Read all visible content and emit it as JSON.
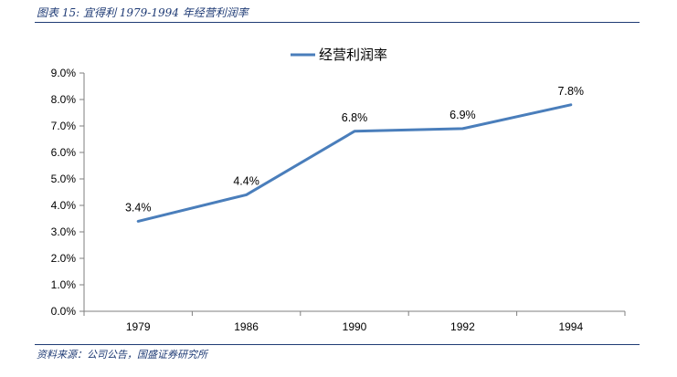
{
  "figure": {
    "title": "图表 15:  宜得利 1979-1994 年经营利润率",
    "source": "资料来源：公司公告，国盛证券研究所"
  },
  "colors": {
    "series": "#4a7ebb",
    "accent": "#1f3b75",
    "axis": "#7f7f7f"
  },
  "chart_data": {
    "type": "line",
    "categories": [
      "1979",
      "1986",
      "1990",
      "1992",
      "1994"
    ],
    "series": [
      {
        "name": "经营利润率",
        "values": [
          3.4,
          4.4,
          6.8,
          6.9,
          7.8
        ]
      }
    ],
    "data_labels": [
      "3.4%",
      "4.4%",
      "6.8%",
      "6.9%",
      "7.8%"
    ],
    "y_ticks": [
      "0.0%",
      "1.0%",
      "2.0%",
      "3.0%",
      "4.0%",
      "5.0%",
      "6.0%",
      "7.0%",
      "8.0%",
      "9.0%"
    ],
    "ylim": [
      0,
      9
    ],
    "legend_position": "top-center",
    "grid": false
  }
}
